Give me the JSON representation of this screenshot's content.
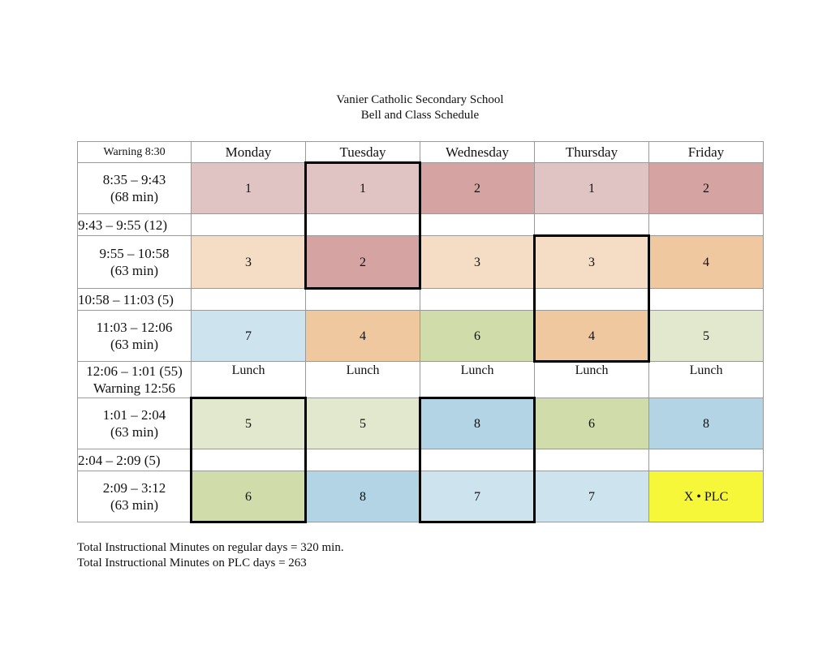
{
  "header": {
    "title": "Vanier Catholic Secondary School",
    "subtitle": "Bell and Class Schedule"
  },
  "table": {
    "corner": "Warning 8:30",
    "days": [
      "Monday",
      "Tuesday",
      "Wednesday",
      "Thursday",
      "Friday"
    ],
    "rows": [
      {
        "time": [
          "8:35 – 9:43",
          "(68 min)"
        ],
        "cells": [
          {
            "text": "1",
            "color": "#e0c3c3"
          },
          {
            "text": "1",
            "color": "#e0c3c3"
          },
          {
            "text": "2",
            "color": "#d4a3a2"
          },
          {
            "text": "1",
            "color": "#e0c3c3"
          },
          {
            "text": "2",
            "color": "#d4a3a2"
          }
        ]
      },
      {
        "time": [
          "9:43 – 9:55 (12)"
        ]
      },
      {
        "time": [
          "9:55 – 10:58",
          "(63 min)"
        ],
        "cells": [
          {
            "text": "3",
            "color": "#f5dcc4"
          },
          {
            "text": "2",
            "color": "#d4a3a2"
          },
          {
            "text": "3",
            "color": "#f5dcc4"
          },
          {
            "text": "3",
            "color": "#f5dcc4"
          },
          {
            "text": "4",
            "color": "#f0c8a0"
          }
        ]
      },
      {
        "time": [
          "10:58 – 11:03 (5)"
        ]
      },
      {
        "time": [
          "11:03 – 12:06",
          "(63 min)"
        ],
        "cells": [
          {
            "text": "7",
            "color": "#cde3ee"
          },
          {
            "text": "4",
            "color": "#f0c8a0"
          },
          {
            "text": "6",
            "color": "#d0dcaa"
          },
          {
            "text": "4",
            "color": "#f0c8a0"
          },
          {
            "text": "5",
            "color": "#e1e8cd"
          }
        ]
      },
      {
        "time": [
          "12:06 – 1:01 (55)",
          "Warning 12:56"
        ],
        "cells": [
          {
            "text": "Lunch",
            "color": "#ffffff"
          },
          {
            "text": "Lunch",
            "color": "#ffffff"
          },
          {
            "text": "Lunch",
            "color": "#ffffff"
          },
          {
            "text": "Lunch",
            "color": "#ffffff"
          },
          {
            "text": "Lunch",
            "color": "#ffffff"
          }
        ]
      },
      {
        "time": [
          "1:01 – 2:04",
          "(63 min)"
        ],
        "cells": [
          {
            "text": "5",
            "color": "#e1e8cd"
          },
          {
            "text": "5",
            "color": "#e1e8cd"
          },
          {
            "text": "8",
            "color": "#b2d4e4"
          },
          {
            "text": "6",
            "color": "#d0dcaa"
          },
          {
            "text": "8",
            "color": "#b2d4e4"
          }
        ]
      },
      {
        "time": [
          "2:04 – 2:09 (5)"
        ]
      },
      {
        "time": [
          "2:09 – 3:12",
          "(63 min)"
        ],
        "cells": [
          {
            "text": "6",
            "color": "#d0dcaa"
          },
          {
            "text": "8",
            "color": "#b2d4e4"
          },
          {
            "text": "7",
            "color": "#cde3ee"
          },
          {
            "text": "7",
            "color": "#cde3ee"
          },
          {
            "text": "X • PLC",
            "color": "#f7f73a"
          }
        ]
      }
    ]
  },
  "footer": [
    "Total Instructional Minutes on regular days = 320 min.",
    "Total Instructional Minutes on PLC days = 263"
  ]
}
